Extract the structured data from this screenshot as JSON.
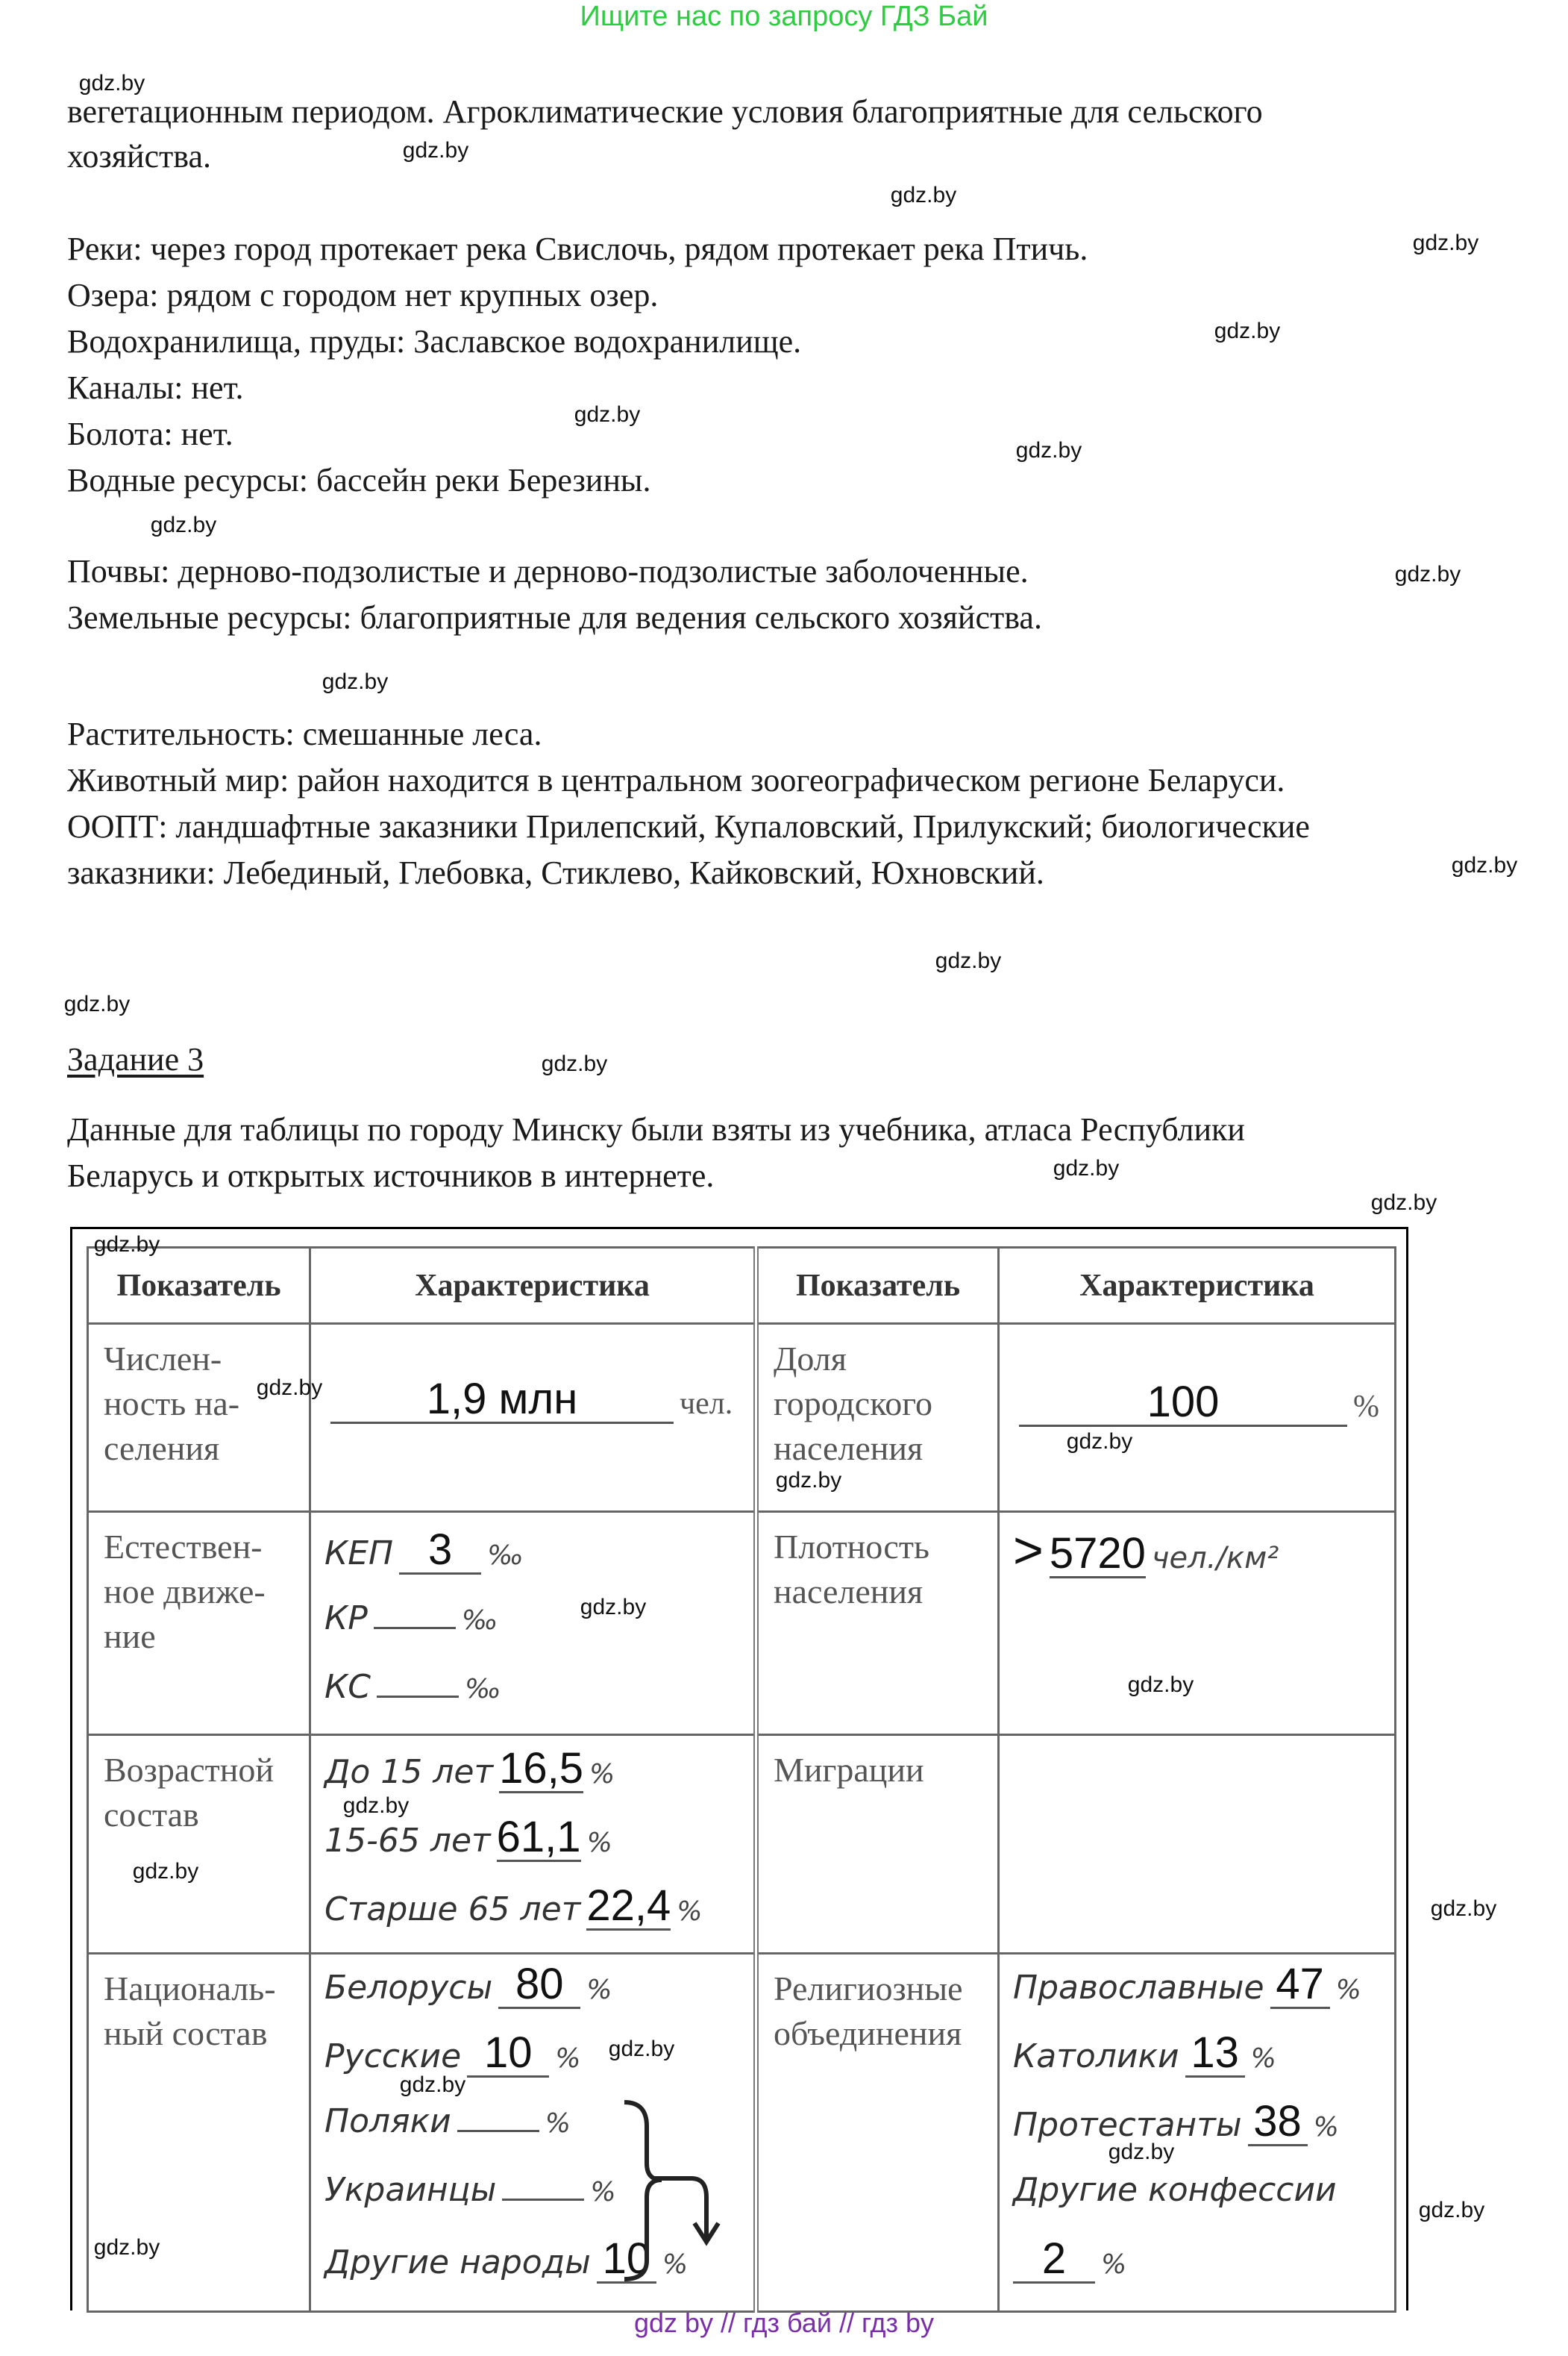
{
  "banner": "Ищите нас по запросу ГДЗ Бай",
  "watermark": "gdz.by",
  "text_lines": [
    "вегетационным периодом. Агроклиматические условия благоприятные для сельского",
    "хозяйства.",
    "Реки: через город протекает река Свислочь, рядом протекает река Птичь.",
    "Озера: рядом с городом нет крупных озер.",
    "Водохранилища, пруды: Заславское водохранилище.",
    "Каналы: нет.",
    "Болота: нет.",
    "Водные ресурсы: бассейн реки Березины.",
    "Почвы: дерново-подзолистые и дерново-подзолистые заболоченные.",
    "Земельные ресурсы: благоприятные для ведения сельского хозяйства.",
    "Растительность: смешанные леса.",
    "Животный мир: район находится в центральном зоогеографическом регионе Беларуси.",
    "ООПТ: ландшафтные заказники Прилепский, Купаловский, Прилукский; биологические",
    "заказники: Лебединый, Глебовка, Стиклево, Кайковский, Юхновский."
  ],
  "task_title": "Задание 3",
  "intro_lines": [
    "Данные для таблицы по городу Минску были взяты из учебника, атласа Республики",
    "Беларусь и открытых источников в интернете."
  ],
  "table": {
    "headers": [
      "Показатель",
      "Характеристика",
      "Показатель",
      "Характеристика"
    ],
    "population": {
      "label": "Числен-ность на-селения",
      "value": "1,9 млн",
      "unit": "чел."
    },
    "urban_share": {
      "label": "Доля городского населения",
      "value": "100",
      "unit": "%"
    },
    "natural_movement": {
      "label": "Естествен-ное движе-ние",
      "items": [
        {
          "name": "КЕП",
          "value": "3",
          "unit": "‰"
        },
        {
          "name": "КР",
          "value": "",
          "unit": "‰"
        },
        {
          "name": "КС",
          "value": "",
          "unit": "‰"
        }
      ]
    },
    "density": {
      "label": "Плотность населения",
      "prefix": ">",
      "value": "5720",
      "unit": "чел./км²"
    },
    "age": {
      "label": "Возрастной состав",
      "items": [
        {
          "name": "До 15 лет",
          "value": "16,5",
          "unit": "%"
        },
        {
          "name": "15-65 лет",
          "value": "61,1",
          "unit": "%"
        },
        {
          "name": "Старше 65 лет",
          "value": "22,4",
          "unit": "%"
        }
      ]
    },
    "migration": {
      "label": "Миграции",
      "value": ""
    },
    "nationality": {
      "label": "Националь-ный состав",
      "items": [
        {
          "name": "Белорусы",
          "value": "80",
          "unit": "%"
        },
        {
          "name": "Русские",
          "value": "10",
          "unit": "%"
        },
        {
          "name": "Поляки",
          "value": "",
          "unit": "%"
        },
        {
          "name": "Украинцы",
          "value": "",
          "unit": "%"
        },
        {
          "name": "Другие народы",
          "value": "10",
          "unit": "%"
        }
      ]
    },
    "religion": {
      "label": "Религиозные объединения",
      "items": [
        {
          "name": "Православные",
          "value": "47",
          "unit": "%"
        },
        {
          "name": "Католики",
          "value": "13",
          "unit": "%"
        },
        {
          "name": "Протестанты",
          "value": "38",
          "unit": "%"
        },
        {
          "name": "Другие конфессии",
          "value": "2",
          "unit": "%"
        }
      ]
    }
  },
  "footer": "gdz by // гдз бай // гдз by"
}
